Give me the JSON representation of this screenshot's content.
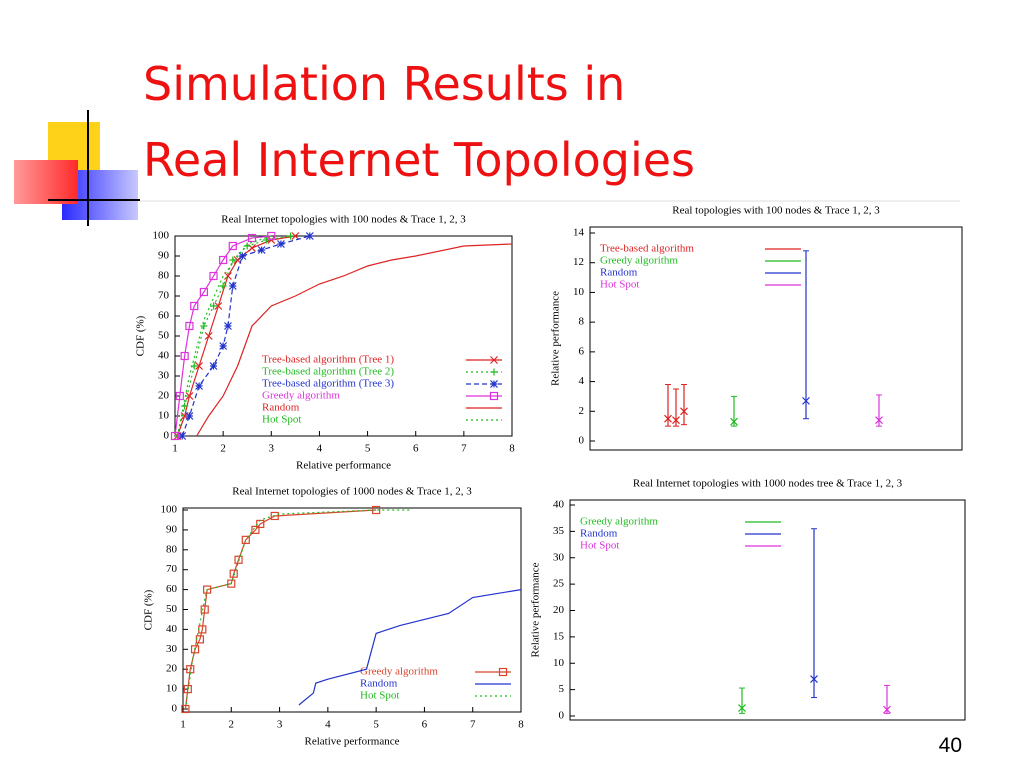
{
  "title_lines": [
    "Simulation Results in",
    "Real Internet Topologies"
  ],
  "page_number": 40,
  "chart_data": [
    {
      "type": "line",
      "title": "Real Internet topologies with 100 nodes & Trace 1, 2, 3",
      "x_label": "Relative performance",
      "y_label": "CDF (%)",
      "xlim": [
        1,
        8
      ],
      "xticks": [
        1,
        2,
        3,
        4,
        5,
        6,
        7,
        8
      ],
      "ylim": [
        0,
        100
      ],
      "yticks": [
        0,
        10,
        20,
        30,
        40,
        50,
        60,
        70,
        80,
        90,
        100
      ],
      "legend": "lower right",
      "series": [
        {
          "name": "Tree-based algorithm (Tree 1)",
          "color": "#dd2222",
          "marker": "x",
          "dash": "solid",
          "x": [
            1.05,
            1.2,
            1.3,
            1.5,
            1.7,
            1.9,
            2.1,
            2.3,
            2.6,
            3.0,
            3.5
          ],
          "values": [
            0,
            10,
            20,
            35,
            50,
            65,
            80,
            88,
            94,
            98,
            100
          ]
        },
        {
          "name": "Tree-based algorithm (Tree 2)",
          "color": "#22bb22",
          "marker": "+",
          "dash": "dotted",
          "x": [
            1.05,
            1.2,
            1.4,
            1.6,
            1.8,
            2.0,
            2.2,
            2.5,
            2.9,
            3.4
          ],
          "values": [
            0,
            15,
            35,
            55,
            65,
            75,
            88,
            95,
            98,
            100
          ]
        },
        {
          "name": "Tree-based algorithm (Tree 3)",
          "color": "#2233cc",
          "marker": "*",
          "dash": "dashed",
          "x": [
            1.15,
            1.3,
            1.5,
            1.8,
            2.0,
            2.1,
            2.2,
            2.4,
            2.8,
            3.2,
            3.8
          ],
          "values": [
            0,
            10,
            25,
            35,
            45,
            55,
            75,
            90,
            93,
            96,
            100
          ]
        },
        {
          "name": "Greedy algorithm",
          "color": "#dd33dd",
          "marker": "square",
          "dash": "solid",
          "x": [
            1.0,
            1.1,
            1.2,
            1.3,
            1.4,
            1.6,
            1.8,
            2.0,
            2.2,
            2.6,
            3.0
          ],
          "values": [
            0,
            20,
            40,
            55,
            65,
            72,
            80,
            88,
            95,
            99,
            100
          ]
        },
        {
          "name": "Random",
          "color": "#dd2222",
          "marker": "none",
          "dash": "solid",
          "x": [
            1.45,
            1.7,
            2.0,
            2.3,
            2.6,
            3.0,
            3.5,
            4.0,
            4.5,
            5.0,
            5.5,
            6.0,
            7.0,
            8.0
          ],
          "values": [
            0,
            10,
            20,
            35,
            55,
            65,
            70,
            76,
            80,
            85,
            88,
            90,
            95,
            96
          ]
        },
        {
          "name": "Hot Spot",
          "color": "#22bb22",
          "marker": "none",
          "dash": "dotted",
          "x": [
            1.05,
            1.3,
            1.6,
            2.0,
            2.5,
            3.0
          ],
          "values": [
            0,
            30,
            58,
            80,
            96,
            100
          ]
        }
      ]
    },
    {
      "type": "errorbar",
      "title": "Real topologies with 100 nodes & Trace 1, 2, 3",
      "y_label": "Relative performance",
      "ylim": [
        0,
        14
      ],
      "yticks": [
        0,
        2,
        4,
        6,
        8,
        10,
        12,
        14
      ],
      "legend": "upper left",
      "series": [
        {
          "name": "Tree-based algorithm",
          "color": "#dd2222",
          "values": [
            1.5,
            1.4,
            2.0
          ],
          "low": [
            1.0,
            1.0,
            1.1
          ],
          "high": [
            3.8,
            3.5,
            3.8
          ]
        },
        {
          "name": "Greedy algorithm",
          "color": "#22bb22",
          "values": [
            1.3
          ],
          "low": [
            1.0
          ],
          "high": [
            3.0
          ]
        },
        {
          "name": "Random",
          "color": "#2233cc",
          "values": [
            2.7
          ],
          "low": [
            1.5
          ],
          "high": [
            12.8
          ]
        },
        {
          "name": "Hot Spot",
          "color": "#dd33dd",
          "values": [
            1.4
          ],
          "low": [
            1.0
          ],
          "high": [
            3.1
          ]
        }
      ]
    },
    {
      "type": "line",
      "title": "Real Internet topologies of 1000 nodes & Trace 1, 2, 3",
      "x_label": "Relative performance",
      "y_label": "CDF (%)",
      "xlim": [
        1,
        8
      ],
      "xticks": [
        1,
        2,
        3,
        4,
        5,
        6,
        7,
        8
      ],
      "ylim": [
        0,
        100
      ],
      "yticks": [
        0,
        10,
        20,
        30,
        40,
        50,
        60,
        70,
        80,
        90,
        100
      ],
      "legend": "lower right",
      "series": [
        {
          "name": "Greedy algorithm",
          "color": "#d9442b",
          "marker": "square",
          "dash": "solid",
          "x": [
            1.05,
            1.1,
            1.15,
            1.25,
            1.35,
            1.4,
            1.45,
            1.5,
            2.0,
            2.05,
            2.15,
            2.3,
            2.5,
            2.6,
            2.9,
            5.0
          ],
          "values": [
            0,
            10,
            20,
            30,
            35,
            40,
            50,
            60,
            63,
            68,
            75,
            85,
            90,
            93,
            97,
            100
          ]
        },
        {
          "name": "Random",
          "color": "#2233cc",
          "marker": "none",
          "dash": "solid",
          "x": [
            3.4,
            3.7,
            3.75,
            4.0,
            4.8,
            5.0,
            5.5,
            6.0,
            6.5,
            7.0,
            7.5,
            8.0
          ],
          "values": [
            2,
            8,
            13,
            15,
            20,
            38,
            42,
            45,
            48,
            56,
            58,
            60
          ]
        },
        {
          "name": "Hot Spot",
          "color": "#22bb22",
          "marker": "none",
          "dash": "dotted",
          "x": [
            1.05,
            1.2,
            1.45,
            1.5,
            2.0,
            2.3,
            2.6,
            3.0,
            5.0,
            5.7
          ],
          "values": [
            0,
            25,
            55,
            60,
            63,
            85,
            95,
            98,
            100,
            100
          ]
        }
      ]
    },
    {
      "type": "errorbar",
      "title": "Real Internet topologies with 1000 nodes tree & Trace 1, 2, 3",
      "y_label": "Relative performance",
      "ylim": [
        0,
        40
      ],
      "yticks": [
        0,
        5,
        10,
        15,
        20,
        25,
        30,
        35,
        40
      ],
      "legend": "upper left",
      "series": [
        {
          "name": "Greedy algorithm",
          "color": "#22bb22",
          "values": [
            1.5
          ],
          "low": [
            0.5
          ],
          "high": [
            5.3
          ]
        },
        {
          "name": "Random",
          "color": "#2233cc",
          "values": [
            7
          ],
          "low": [
            3.5
          ],
          "high": [
            35.5
          ]
        },
        {
          "name": "Hot Spot",
          "color": "#dd33dd",
          "values": [
            1.2
          ],
          "low": [
            0.5
          ],
          "high": [
            5.8
          ]
        }
      ]
    }
  ]
}
